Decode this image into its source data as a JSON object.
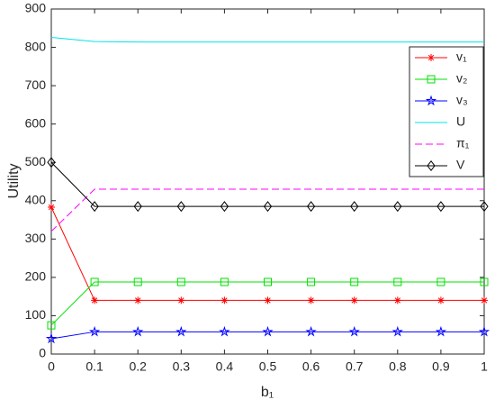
{
  "chart_data": {
    "type": "line",
    "x_label": "b₁",
    "y_label": "Utility",
    "x": [
      0,
      0.1,
      0.2,
      0.3,
      0.4,
      0.5,
      0.6,
      0.7,
      0.8,
      0.9,
      1
    ],
    "xlim": [
      0,
      1
    ],
    "xticks": [
      0,
      0.1,
      0.2,
      0.3,
      0.4,
      0.5,
      0.6,
      0.7,
      0.8,
      0.9,
      1
    ],
    "ylim": [
      0,
      900
    ],
    "yticks": [
      0,
      100,
      200,
      300,
      400,
      500,
      600,
      700,
      800,
      900
    ],
    "grid": false,
    "legend": "upper right",
    "series": [
      {
        "name": "v₁",
        "color": "#ff0000",
        "marker": "*",
        "line": "solid",
        "values": [
          383,
          140,
          140,
          140,
          140,
          140,
          140,
          140,
          140,
          140,
          140
        ]
      },
      {
        "name": "v₂",
        "color": "#00e000",
        "marker": "s",
        "line": "solid",
        "values": [
          75,
          188,
          188,
          188,
          188,
          188,
          188,
          188,
          188,
          188,
          188
        ]
      },
      {
        "name": "v₃",
        "color": "#0000ff",
        "marker": "p",
        "line": "solid",
        "values": [
          40,
          58,
          58,
          58,
          58,
          58,
          58,
          58,
          58,
          58,
          58
        ]
      },
      {
        "name": "U",
        "color": "#00e5e5",
        "marker": "none",
        "line": "solid",
        "values": [
          826,
          815,
          814,
          814,
          814,
          814,
          814,
          814,
          814,
          814,
          814
        ]
      },
      {
        "name": "π₁",
        "color": "#ff00ff",
        "marker": "none",
        "line": "dashed",
        "values": [
          320,
          430,
          430,
          430,
          430,
          430,
          430,
          430,
          430,
          430,
          430
        ]
      },
      {
        "name": "V",
        "color": "#000000",
        "marker": "d",
        "line": "solid",
        "values": [
          500,
          385,
          385,
          385,
          385,
          385,
          385,
          385,
          385,
          385,
          385
        ]
      }
    ]
  }
}
